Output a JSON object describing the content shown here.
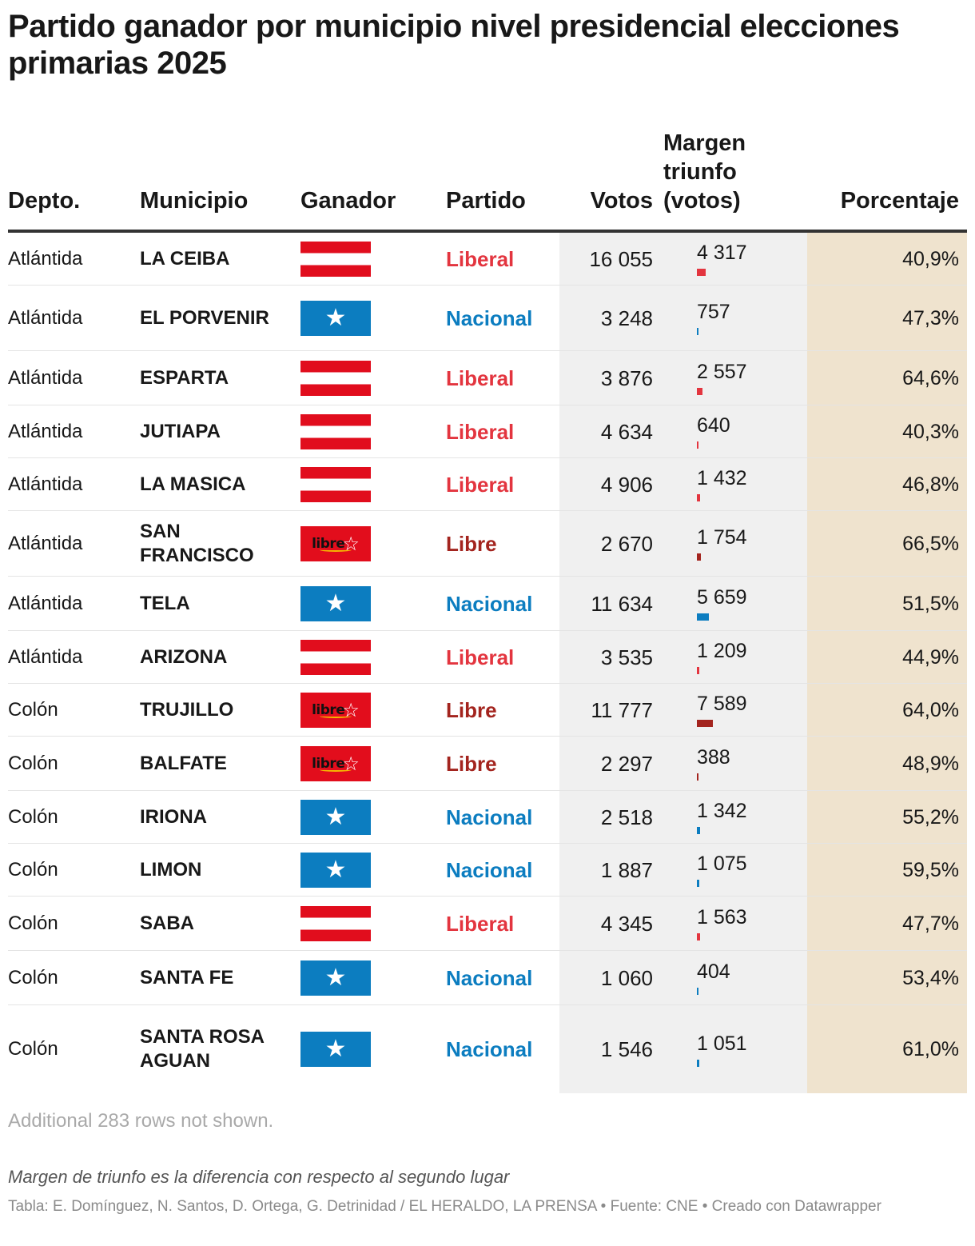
{
  "title": "Partido ganador por municipio nivel presidencial elecciones primarias 2025",
  "columns": {
    "depto": "Depto.",
    "municipio": "Municipio",
    "ganador": "Ganador",
    "partido": "Partido",
    "votos": "Votos",
    "margen": "Margen triunfo (votos)",
    "porcentaje": "Porcentaje"
  },
  "party_colors": {
    "Liberal": "#e3353f",
    "Nacional": "#0c7dc0",
    "Libre": "#a3241e"
  },
  "flag_icons": {
    "Liberal": "liberal-flag-icon",
    "Nacional": "nacional-star-flag-icon",
    "Libre": "libre-logo-icon"
  },
  "libre_logo_text": "libre",
  "chart_data": {
    "type": "table",
    "margin_bar_max": 7589,
    "rows": [
      {
        "depto": "Atlántida",
        "municipio": "LA CEIBA",
        "partido": "Liberal",
        "votos": "16 055",
        "margen": "4 317",
        "margen_value": 4317,
        "porcentaje": "40,9%"
      },
      {
        "depto": "Atlántida",
        "municipio": "EL PORVENIR",
        "partido": "Nacional",
        "votos": "3 248",
        "margen": "757",
        "margen_value": 757,
        "porcentaje": "47,3%"
      },
      {
        "depto": "Atlántida",
        "municipio": "ESPARTA",
        "partido": "Liberal",
        "votos": "3 876",
        "margen": "2 557",
        "margen_value": 2557,
        "porcentaje": "64,6%"
      },
      {
        "depto": "Atlántida",
        "municipio": "JUTIAPA",
        "partido": "Liberal",
        "votos": "4 634",
        "margen": "640",
        "margen_value": 640,
        "porcentaje": "40,3%"
      },
      {
        "depto": "Atlántida",
        "municipio": "LA MASICA",
        "partido": "Liberal",
        "votos": "4 906",
        "margen": "1 432",
        "margen_value": 1432,
        "porcentaje": "46,8%"
      },
      {
        "depto": "Atlántida",
        "municipio": "SAN FRANCISCO",
        "partido": "Libre",
        "votos": "2 670",
        "margen": "1 754",
        "margen_value": 1754,
        "porcentaje": "66,5%"
      },
      {
        "depto": "Atlántida",
        "municipio": "TELA",
        "partido": "Nacional",
        "votos": "11 634",
        "margen": "5 659",
        "margen_value": 5659,
        "porcentaje": "51,5%"
      },
      {
        "depto": "Atlántida",
        "municipio": "ARIZONA",
        "partido": "Liberal",
        "votos": "3 535",
        "margen": "1 209",
        "margen_value": 1209,
        "porcentaje": "44,9%"
      },
      {
        "depto": "Colón",
        "municipio": "TRUJILLO",
        "partido": "Libre",
        "votos": "11 777",
        "margen": "7 589",
        "margen_value": 7589,
        "porcentaje": "64,0%"
      },
      {
        "depto": "Colón",
        "municipio": "BALFATE",
        "partido": "Libre",
        "votos": "2 297",
        "margen": "388",
        "margen_value": 388,
        "porcentaje": "48,9%"
      },
      {
        "depto": "Colón",
        "municipio": "IRIONA",
        "partido": "Nacional",
        "votos": "2 518",
        "margen": "1 342",
        "margen_value": 1342,
        "porcentaje": "55,2%"
      },
      {
        "depto": "Colón",
        "municipio": "LIMON",
        "partido": "Nacional",
        "votos": "1 887",
        "margen": "1 075",
        "margen_value": 1075,
        "porcentaje": "59,5%"
      },
      {
        "depto": "Colón",
        "municipio": "SABA",
        "partido": "Liberal",
        "votos": "4 345",
        "margen": "1 563",
        "margen_value": 1563,
        "porcentaje": "47,7%"
      },
      {
        "depto": "Colón",
        "municipio": "SANTA FE",
        "partido": "Nacional",
        "votos": "1 060",
        "margen": "404",
        "margen_value": 404,
        "porcentaje": "53,4%"
      },
      {
        "depto": "Colón",
        "municipio": "SANTA ROSA AGUAN",
        "partido": "Nacional",
        "votos": "1 546",
        "margen": "1 051",
        "margen_value": 1051,
        "porcentaje": "61,0%"
      }
    ]
  },
  "notes": {
    "rows_hidden": "Additional 283 rows not shown.",
    "footnote": "Margen de triunfo es la diferencia con respecto al segundo lugar",
    "source": "Tabla: E. Domínguez, N. Santos, D. Ortega, G. Detrinidad / EL HERALDO, LA PRENSA • Fuente: CNE • Creado con Datawrapper"
  }
}
